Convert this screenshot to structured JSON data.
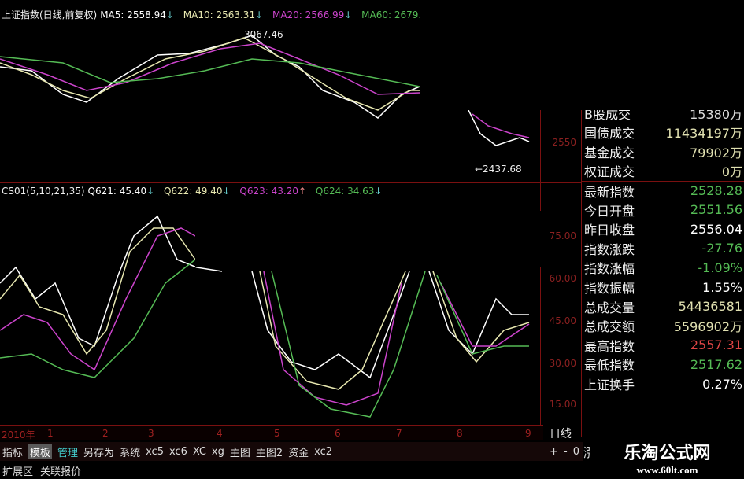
{
  "main_chart": {
    "title": "上证指数(日线,前复权)",
    "ma5": "MA5: 2558.94",
    "ma10": "MA10: 2563.31",
    "ma20": "MA20: 2566.99",
    "ma60": "MA60: 2679.32",
    "arrow_down": "↓",
    "arrow_up": "↑",
    "high_label": "3067.46",
    "low_label": "←2437.68",
    "price_tick": "2550",
    "colors": {
      "ma5": "#ffffff",
      "ma10": "#e8e8b0",
      "ma20": "#cc44cc",
      "ma60": "#55bb55",
      "axis": "#8a2020"
    }
  },
  "indicator": {
    "name": "CS01(5,10,21,35)",
    "q621": "Q621: 45.40",
    "q622": "Q622: 49.40",
    "q623": "Q623: 43.20",
    "q624": "Q624: 34.63",
    "ticks": [
      "75.00",
      "60.00",
      "45.00",
      "30.00",
      "15.00"
    ]
  },
  "dates": [
    "2010年",
    "1",
    "2",
    "3",
    "4",
    "5",
    "6",
    "7",
    "8",
    "9"
  ],
  "period": "日线",
  "toolbar": {
    "items": [
      "指标",
      "模板",
      "管理",
      "另存为",
      "系统",
      "xc5",
      "xc6",
      "XC",
      "xg",
      "主图",
      "主图2",
      "资金",
      "xc2"
    ],
    "zoom": [
      "+",
      "-",
      "0"
    ]
  },
  "bottom": {
    "items": [
      "扩展区",
      "关联报价"
    ],
    "cut": "涨"
  },
  "quote_panel": {
    "rows": [
      {
        "k": "B股成交",
        "v": "15380万",
        "c": "#ddd"
      },
      {
        "k": "国债成交",
        "v": "11434197万",
        "c": "#e0e0b0"
      },
      {
        "k": "基金成交",
        "v": "79902万",
        "c": "#e0e0b0"
      },
      {
        "k": "权证成交",
        "v": "0万",
        "c": "#e0e0b0"
      },
      {
        "k": "最新指数",
        "v": "2528.28",
        "c": "#55bb55"
      },
      {
        "k": "今日开盘",
        "v": "2551.56",
        "c": "#55bb55"
      },
      {
        "k": "昨日收盘",
        "v": "2556.04",
        "c": "#ffffff"
      },
      {
        "k": "指数涨跌",
        "v": "-27.76",
        "c": "#55bb55"
      },
      {
        "k": "指数涨幅",
        "v": "-1.09%",
        "c": "#55bb55"
      },
      {
        "k": "指数振幅",
        "v": "1.55%",
        "c": "#ffffff"
      },
      {
        "k": "总成交量",
        "v": "54436581",
        "c": "#e0e0b0"
      },
      {
        "k": "总成交额",
        "v": "5596902万",
        "c": "#e0e0b0"
      },
      {
        "k": "最高指数",
        "v": "2557.31",
        "c": "#dd4444"
      },
      {
        "k": "最低指数",
        "v": "2517.62",
        "c": "#55bb55"
      },
      {
        "k": "上证换手",
        "v": "0.27%",
        "c": "#ffffff"
      }
    ]
  },
  "watermark": {
    "title": "乐淘公式网",
    "url": "www.60lt.com"
  }
}
